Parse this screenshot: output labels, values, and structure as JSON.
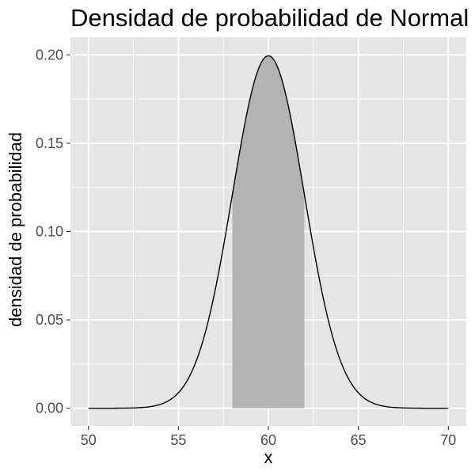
{
  "chart_data": {
    "type": "area",
    "title": "Densidad de probabilidad de Normal",
    "xlabel": "x",
    "ylabel": "densidad de probabilidad",
    "xlim": [
      49,
      71
    ],
    "ylim": [
      -0.01,
      0.21
    ],
    "x_ticks": [
      50,
      55,
      60,
      65,
      70
    ],
    "y_ticks": [
      0.0,
      0.05,
      0.1,
      0.15,
      0.2
    ],
    "x_tick_labels": [
      "50",
      "55",
      "60",
      "65",
      "70"
    ],
    "y_tick_labels": [
      "0.00",
      "0.05",
      "0.10",
      "0.15",
      "0.20"
    ],
    "grid": true,
    "series": [
      {
        "kind": "density-curve",
        "distribution": "normal",
        "mean": 60,
        "sd": 2,
        "x_range": [
          50,
          70
        ],
        "color": "#000000"
      },
      {
        "kind": "shaded-region",
        "x_range": [
          58,
          62
        ],
        "color": "#b3b3b3"
      }
    ],
    "panel_background": "#e5e5e5",
    "grid_color": "#ffffff"
  }
}
